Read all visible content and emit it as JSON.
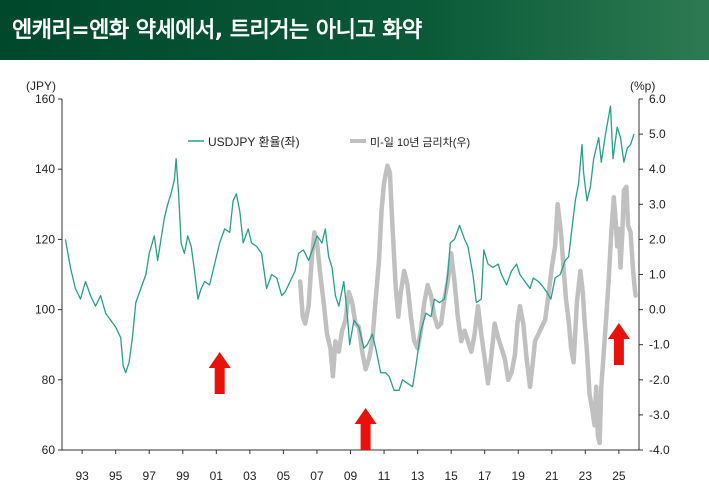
{
  "title": "엔캐리=엔화 약세에서, 트리거는 아니고 화약",
  "chart_data": {
    "type": "line",
    "left_axis": {
      "unit": "(JPY)",
      "ylim": [
        60,
        160
      ],
      "ticks": [
        60,
        80,
        100,
        120,
        140,
        160
      ]
    },
    "right_axis": {
      "unit": "(%p)",
      "ylim": [
        -4.0,
        6.0
      ],
      "ticks": [
        "6.0",
        "5.0",
        "4.0",
        "3.0",
        "2.0",
        "1.0",
        "0.0",
        "-1.0",
        "-2.0",
        "-3.0",
        "-4.0"
      ]
    },
    "x_ticks": [
      "93",
      "95",
      "97",
      "99",
      "01",
      "03",
      "05",
      "07",
      "09",
      "11",
      "13",
      "15",
      "17",
      "19",
      "21",
      "23",
      "25"
    ],
    "x_range": [
      1991.8,
      2026.2
    ],
    "legend": [
      "USDJPY 환율(좌)",
      "미-일 10년 금리차(우)"
    ],
    "colors": {
      "usdjpy": "#2a9d8f",
      "spread": "#c0c0c0",
      "arrow": "#e8120c"
    },
    "series": [
      {
        "name": "USDJPY 환율(좌)",
        "axis": "left",
        "points": [
          [
            1992.0,
            120
          ],
          [
            1992.3,
            112
          ],
          [
            1992.6,
            106
          ],
          [
            1992.9,
            103
          ],
          [
            1993.2,
            108
          ],
          [
            1993.5,
            104
          ],
          [
            1993.8,
            101
          ],
          [
            1994.1,
            104
          ],
          [
            1994.4,
            99
          ],
          [
            1994.7,
            97
          ],
          [
            1995.0,
            95
          ],
          [
            1995.3,
            92
          ],
          [
            1995.45,
            84
          ],
          [
            1995.6,
            82
          ],
          [
            1995.8,
            85
          ],
          [
            1996.0,
            92
          ],
          [
            1996.2,
            102
          ],
          [
            1996.5,
            106
          ],
          [
            1996.8,
            110
          ],
          [
            1997.0,
            116
          ],
          [
            1997.3,
            121
          ],
          [
            1997.5,
            114
          ],
          [
            1997.7,
            120
          ],
          [
            1997.9,
            126
          ],
          [
            1998.1,
            130
          ],
          [
            1998.3,
            133
          ],
          [
            1998.5,
            137
          ],
          [
            1998.6,
            143
          ],
          [
            1998.75,
            133
          ],
          [
            1998.9,
            119
          ],
          [
            1999.1,
            116
          ],
          [
            1999.3,
            121
          ],
          [
            1999.5,
            118
          ],
          [
            1999.7,
            111
          ],
          [
            1999.9,
            103
          ],
          [
            2000.1,
            106
          ],
          [
            2000.3,
            108
          ],
          [
            2000.6,
            107
          ],
          [
            2000.9,
            113
          ],
          [
            2001.2,
            119
          ],
          [
            2001.5,
            123
          ],
          [
            2001.8,
            122
          ],
          [
            2002.0,
            131
          ],
          [
            2002.2,
            133
          ],
          [
            2002.4,
            128
          ],
          [
            2002.6,
            119
          ],
          [
            2002.9,
            123
          ],
          [
            2003.1,
            119
          ],
          [
            2003.4,
            118
          ],
          [
            2003.7,
            116
          ],
          [
            2004.0,
            106
          ],
          [
            2004.3,
            110
          ],
          [
            2004.6,
            109
          ],
          [
            2004.9,
            104
          ],
          [
            2005.1,
            105
          ],
          [
            2005.4,
            108
          ],
          [
            2005.7,
            111
          ],
          [
            2005.9,
            116
          ],
          [
            2006.2,
            117
          ],
          [
            2006.5,
            114
          ],
          [
            2006.8,
            118
          ],
          [
            2007.0,
            121
          ],
          [
            2007.3,
            119
          ],
          [
            2007.5,
            123
          ],
          [
            2007.7,
            115
          ],
          [
            2007.9,
            112
          ],
          [
            2008.1,
            104
          ],
          [
            2008.3,
            101
          ],
          [
            2008.6,
            108
          ],
          [
            2008.8,
            99
          ],
          [
            2008.95,
            90
          ],
          [
            2009.2,
            97
          ],
          [
            2009.5,
            95
          ],
          [
            2009.8,
            89
          ],
          [
            2010.0,
            90
          ],
          [
            2010.3,
            93
          ],
          [
            2010.5,
            89
          ],
          [
            2010.8,
            82
          ],
          [
            2011.1,
            82
          ],
          [
            2011.3,
            81
          ],
          [
            2011.6,
            77
          ],
          [
            2011.9,
            77
          ],
          [
            2012.1,
            80
          ],
          [
            2012.4,
            79
          ],
          [
            2012.7,
            78
          ],
          [
            2012.9,
            84
          ],
          [
            2013.2,
            94
          ],
          [
            2013.5,
            99
          ],
          [
            2013.8,
            98
          ],
          [
            2014.0,
            103
          ],
          [
            2014.3,
            102
          ],
          [
            2014.6,
            103
          ],
          [
            2014.8,
            110
          ],
          [
            2014.95,
            119
          ],
          [
            2015.2,
            120
          ],
          [
            2015.5,
            124
          ],
          [
            2015.8,
            120
          ],
          [
            2016.0,
            118
          ],
          [
            2016.3,
            110
          ],
          [
            2016.5,
            102
          ],
          [
            2016.8,
            103
          ],
          [
            2016.95,
            117
          ],
          [
            2017.2,
            113
          ],
          [
            2017.5,
            112
          ],
          [
            2017.8,
            113
          ],
          [
            2018.0,
            110
          ],
          [
            2018.3,
            107
          ],
          [
            2018.6,
            111
          ],
          [
            2018.9,
            113
          ],
          [
            2019.1,
            110
          ],
          [
            2019.4,
            108
          ],
          [
            2019.7,
            106
          ],
          [
            2019.9,
            109
          ],
          [
            2020.2,
            108
          ],
          [
            2020.4,
            107
          ],
          [
            2020.7,
            105
          ],
          [
            2020.95,
            103
          ],
          [
            2021.2,
            109
          ],
          [
            2021.5,
            110
          ],
          [
            2021.8,
            114
          ],
          [
            2022.0,
            115
          ],
          [
            2022.2,
            123
          ],
          [
            2022.4,
            131
          ],
          [
            2022.6,
            136
          ],
          [
            2022.8,
            147
          ],
          [
            2022.9,
            139
          ],
          [
            2023.1,
            131
          ],
          [
            2023.3,
            135
          ],
          [
            2023.5,
            143
          ],
          [
            2023.8,
            149
          ],
          [
            2023.95,
            142
          ],
          [
            2024.2,
            150
          ],
          [
            2024.5,
            158
          ],
          [
            2024.65,
            143
          ],
          [
            2024.9,
            152
          ],
          [
            2025.1,
            149
          ],
          [
            2025.3,
            142
          ],
          [
            2025.5,
            146
          ],
          [
            2025.7,
            147
          ],
          [
            2025.9,
            150
          ]
        ]
      },
      {
        "name": "미-일 10년 금리차(우)",
        "axis": "right",
        "points": [
          [
            2006.0,
            0.8
          ],
          [
            2006.15,
            -0.2
          ],
          [
            2006.3,
            -0.4
          ],
          [
            2006.5,
            0.1
          ],
          [
            2006.7,
            1.5
          ],
          [
            2006.85,
            2.2
          ],
          [
            2007.0,
            1.9
          ],
          [
            2007.2,
            1.0
          ],
          [
            2007.4,
            0.2
          ],
          [
            2007.6,
            -0.7
          ],
          [
            2007.8,
            -1.1
          ],
          [
            2007.95,
            -1.9
          ],
          [
            2008.1,
            -0.9
          ],
          [
            2008.3,
            -1.2
          ],
          [
            2008.5,
            -0.6
          ],
          [
            2008.7,
            -0.3
          ],
          [
            2008.9,
            0.5
          ],
          [
            2009.1,
            0.2
          ],
          [
            2009.3,
            -0.4
          ],
          [
            2009.5,
            -0.5
          ],
          [
            2009.7,
            -1.2
          ],
          [
            2009.9,
            -1.7
          ],
          [
            2010.1,
            -1.4
          ],
          [
            2010.3,
            -0.9
          ],
          [
            2010.5,
            0.3
          ],
          [
            2010.7,
            1.4
          ],
          [
            2010.85,
            2.8
          ],
          [
            2011.0,
            3.6
          ],
          [
            2011.2,
            4.1
          ],
          [
            2011.35,
            3.9
          ],
          [
            2011.5,
            2.4
          ],
          [
            2011.7,
            0.6
          ],
          [
            2011.85,
            -0.2
          ],
          [
            2012.0,
            0.5
          ],
          [
            2012.2,
            1.1
          ],
          [
            2012.4,
            0.7
          ],
          [
            2012.6,
            -0.2
          ],
          [
            2012.8,
            -0.9
          ],
          [
            2013.0,
            -1.1
          ],
          [
            2013.2,
            -0.6
          ],
          [
            2013.4,
            0.2
          ],
          [
            2013.6,
            0.7
          ],
          [
            2013.8,
            0.4
          ],
          [
            2014.0,
            -0.2
          ],
          [
            2014.2,
            -0.5
          ],
          [
            2014.4,
            -0.4
          ],
          [
            2014.6,
            0.3
          ],
          [
            2014.8,
            0.8
          ],
          [
            2015.0,
            1.6
          ],
          [
            2015.2,
            0.8
          ],
          [
            2015.4,
            -0.2
          ],
          [
            2015.6,
            -0.9
          ],
          [
            2015.8,
            -0.6
          ],
          [
            2016.0,
            -0.9
          ],
          [
            2016.2,
            -1.2
          ],
          [
            2016.4,
            -0.7
          ],
          [
            2016.6,
            0.1
          ],
          [
            2016.8,
            -0.7
          ],
          [
            2017.0,
            -1.4
          ],
          [
            2017.2,
            -2.1
          ],
          [
            2017.4,
            -1.3
          ],
          [
            2017.6,
            -0.4
          ],
          [
            2017.8,
            -0.8
          ],
          [
            2018.0,
            -1.1
          ],
          [
            2018.2,
            -1.4
          ],
          [
            2018.4,
            -2.0
          ],
          [
            2018.6,
            -1.8
          ],
          [
            2018.8,
            -1.3
          ],
          [
            2018.95,
            -0.4
          ],
          [
            2019.1,
            0.1
          ],
          [
            2019.3,
            -0.4
          ],
          [
            2019.5,
            -1.4
          ],
          [
            2019.7,
            -2.2
          ],
          [
            2019.85,
            -1.6
          ],
          [
            2020.0,
            -0.9
          ],
          [
            2020.2,
            -0.7
          ],
          [
            2020.4,
            -0.5
          ],
          [
            2020.6,
            -0.3
          ],
          [
            2020.8,
            0.4
          ],
          [
            2021.0,
            1.2
          ],
          [
            2021.2,
            1.8
          ],
          [
            2021.35,
            3.0
          ],
          [
            2021.55,
            2.2
          ],
          [
            2021.7,
            1.2
          ],
          [
            2021.85,
            0.3
          ],
          [
            2022.0,
            -0.3
          ],
          [
            2022.15,
            -1.1
          ],
          [
            2022.3,
            -1.5
          ],
          [
            2022.5,
            0.2
          ],
          [
            2022.7,
            1.1
          ],
          [
            2022.85,
            0.5
          ],
          [
            2022.95,
            -0.3
          ],
          [
            2023.1,
            -1.2
          ],
          [
            2023.25,
            -2.4
          ],
          [
            2023.4,
            -2.8
          ],
          [
            2023.55,
            -3.3
          ],
          [
            2023.65,
            -2.2
          ],
          [
            2023.75,
            -3.6
          ],
          [
            2023.85,
            -3.8
          ],
          [
            2023.95,
            -2.2
          ],
          [
            2024.1,
            -1.2
          ],
          [
            2024.25,
            -0.2
          ],
          [
            2024.4,
            0.9
          ],
          [
            2024.55,
            2.2
          ],
          [
            2024.7,
            3.2
          ],
          [
            2024.8,
            2.6
          ],
          [
            2024.9,
            1.8
          ],
          [
            2025.0,
            2.3
          ],
          [
            2025.1,
            1.2
          ],
          [
            2025.2,
            2.1
          ],
          [
            2025.3,
            3.4
          ],
          [
            2025.45,
            3.5
          ],
          [
            2025.55,
            2.4
          ],
          [
            2025.7,
            2.2
          ],
          [
            2025.85,
            1.1
          ],
          [
            2025.95,
            0.6
          ],
          [
            2026.0,
            0.4
          ]
        ]
      }
    ],
    "arrows": [
      2001.2,
      2009.9,
      2025.0
    ]
  }
}
